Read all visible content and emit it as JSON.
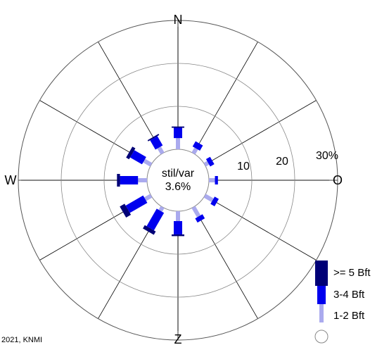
{
  "chart_data": {
    "type": "wind-rose",
    "directions": [
      "N",
      "NNO",
      "ONO",
      "O",
      "OZO",
      "ZZO",
      "Z",
      "ZZW",
      "WZW",
      "W",
      "WNW",
      "NNW"
    ],
    "direction_angles_deg": [
      0,
      30,
      60,
      90,
      120,
      150,
      180,
      210,
      240,
      270,
      300,
      330
    ],
    "compass_labels": {
      "north": "N",
      "east": "O",
      "south": "Z",
      "west": "W"
    },
    "ring_labels": [
      "10",
      "20",
      "30%"
    ],
    "ring_values": [
      10,
      20,
      30
    ],
    "max_percent": 30,
    "calm": {
      "label": "stil/var",
      "value_label": "3.6%",
      "value": 3.6
    },
    "series": [
      {
        "name": "1-2 Bft",
        "color": "#aaaaee",
        "values": [
          2.6,
          1.3,
          0.9,
          1.4,
          2.1,
          2.5,
          2.3,
          1.0,
          1.6,
          2.1,
          1.9,
          1.6
        ]
      },
      {
        "name": "3-4 Bft",
        "color": "#0000ee",
        "values": [
          2.4,
          1.4,
          1.1,
          0.7,
          1.1,
          1.1,
          3.1,
          4.7,
          4.7,
          4.2,
          3.2,
          2.5
        ]
      },
      {
        "name": ">= 5 Bft",
        "color": "#000077",
        "values": [
          0.3,
          0.0,
          0.0,
          0.0,
          0.0,
          0.0,
          0.4,
          0.9,
          1.3,
          0.7,
          0.8,
          0.3
        ]
      }
    ],
    "legend": [
      {
        "label": ">= 5 Bft",
        "color": "#000077"
      },
      {
        "label": "3-4 Bft",
        "color": "#0000ee"
      },
      {
        "label": "1-2 Bft",
        "color": "#aaaaee"
      }
    ],
    "legend_position": "bottom-right",
    "grid": true
  },
  "footer": {
    "copyright": "2021, KNMI"
  },
  "colors": {
    "grid": "#888888",
    "spoke": "#000000",
    "outer_ring": "#555555"
  }
}
